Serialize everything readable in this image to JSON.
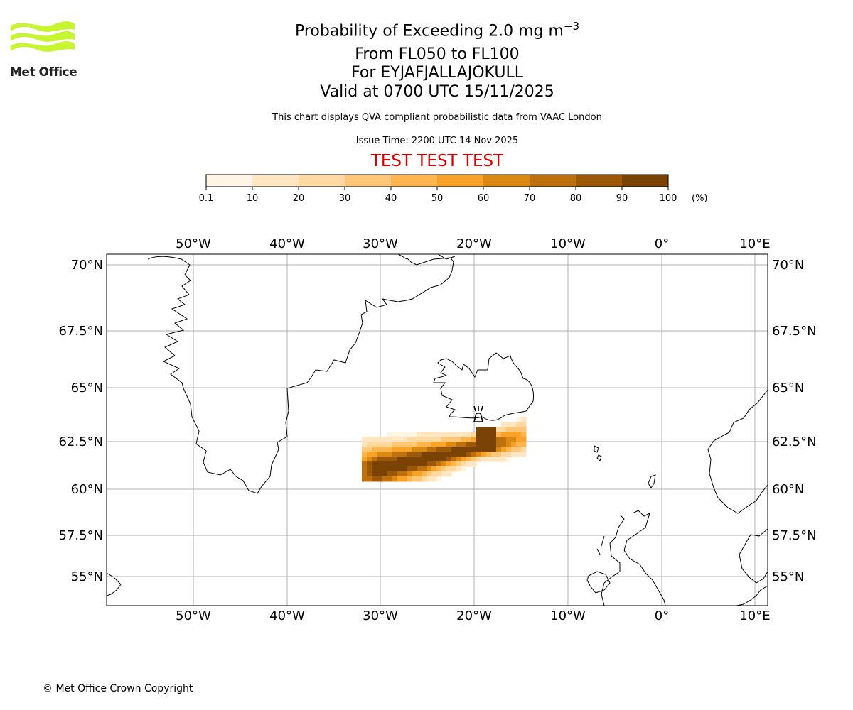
{
  "header": {
    "logo_text": "Met Office",
    "title_prefix": "Probability of Exceeding 2.0 mg m",
    "title_superscript": "−3",
    "line2": "From FL050 to FL100",
    "line3": "For EYJAFJALLAJOKULL",
    "line4": "Valid at 0700 UTC 15/11/2025",
    "note": "This chart displays QVA compliant probabilistic data from VAAC London",
    "issue_time": "Issue Time: 2200 UTC 14 Nov 2025",
    "test_banner": "TEST TEST TEST"
  },
  "colorbar": {
    "ticks": [
      "0.1",
      "10",
      "20",
      "30",
      "40",
      "50",
      "60",
      "70",
      "80",
      "90",
      "100"
    ],
    "unit": "(%)",
    "colors": [
      "#fff5e6",
      "#ffe7c4",
      "#ffd9a2",
      "#ffc777",
      "#ffb54d",
      "#f8a228",
      "#dc8912",
      "#bd700b",
      "#9b5806",
      "#7a4305"
    ]
  },
  "map": {
    "lon_labels": [
      "50°W",
      "40°W",
      "30°W",
      "20°W",
      "10°W",
      "0°",
      "10°E"
    ],
    "lat_labels": [
      "70°N",
      "67.5°N",
      "65°N",
      "62.5°N",
      "60°N",
      "57.5°N",
      "55°N"
    ],
    "volcano_icon": "volcano-icon",
    "gridline_color": "#b0b0b0"
  },
  "footer": {
    "copyright": "© Met Office Crown Copyright"
  }
}
